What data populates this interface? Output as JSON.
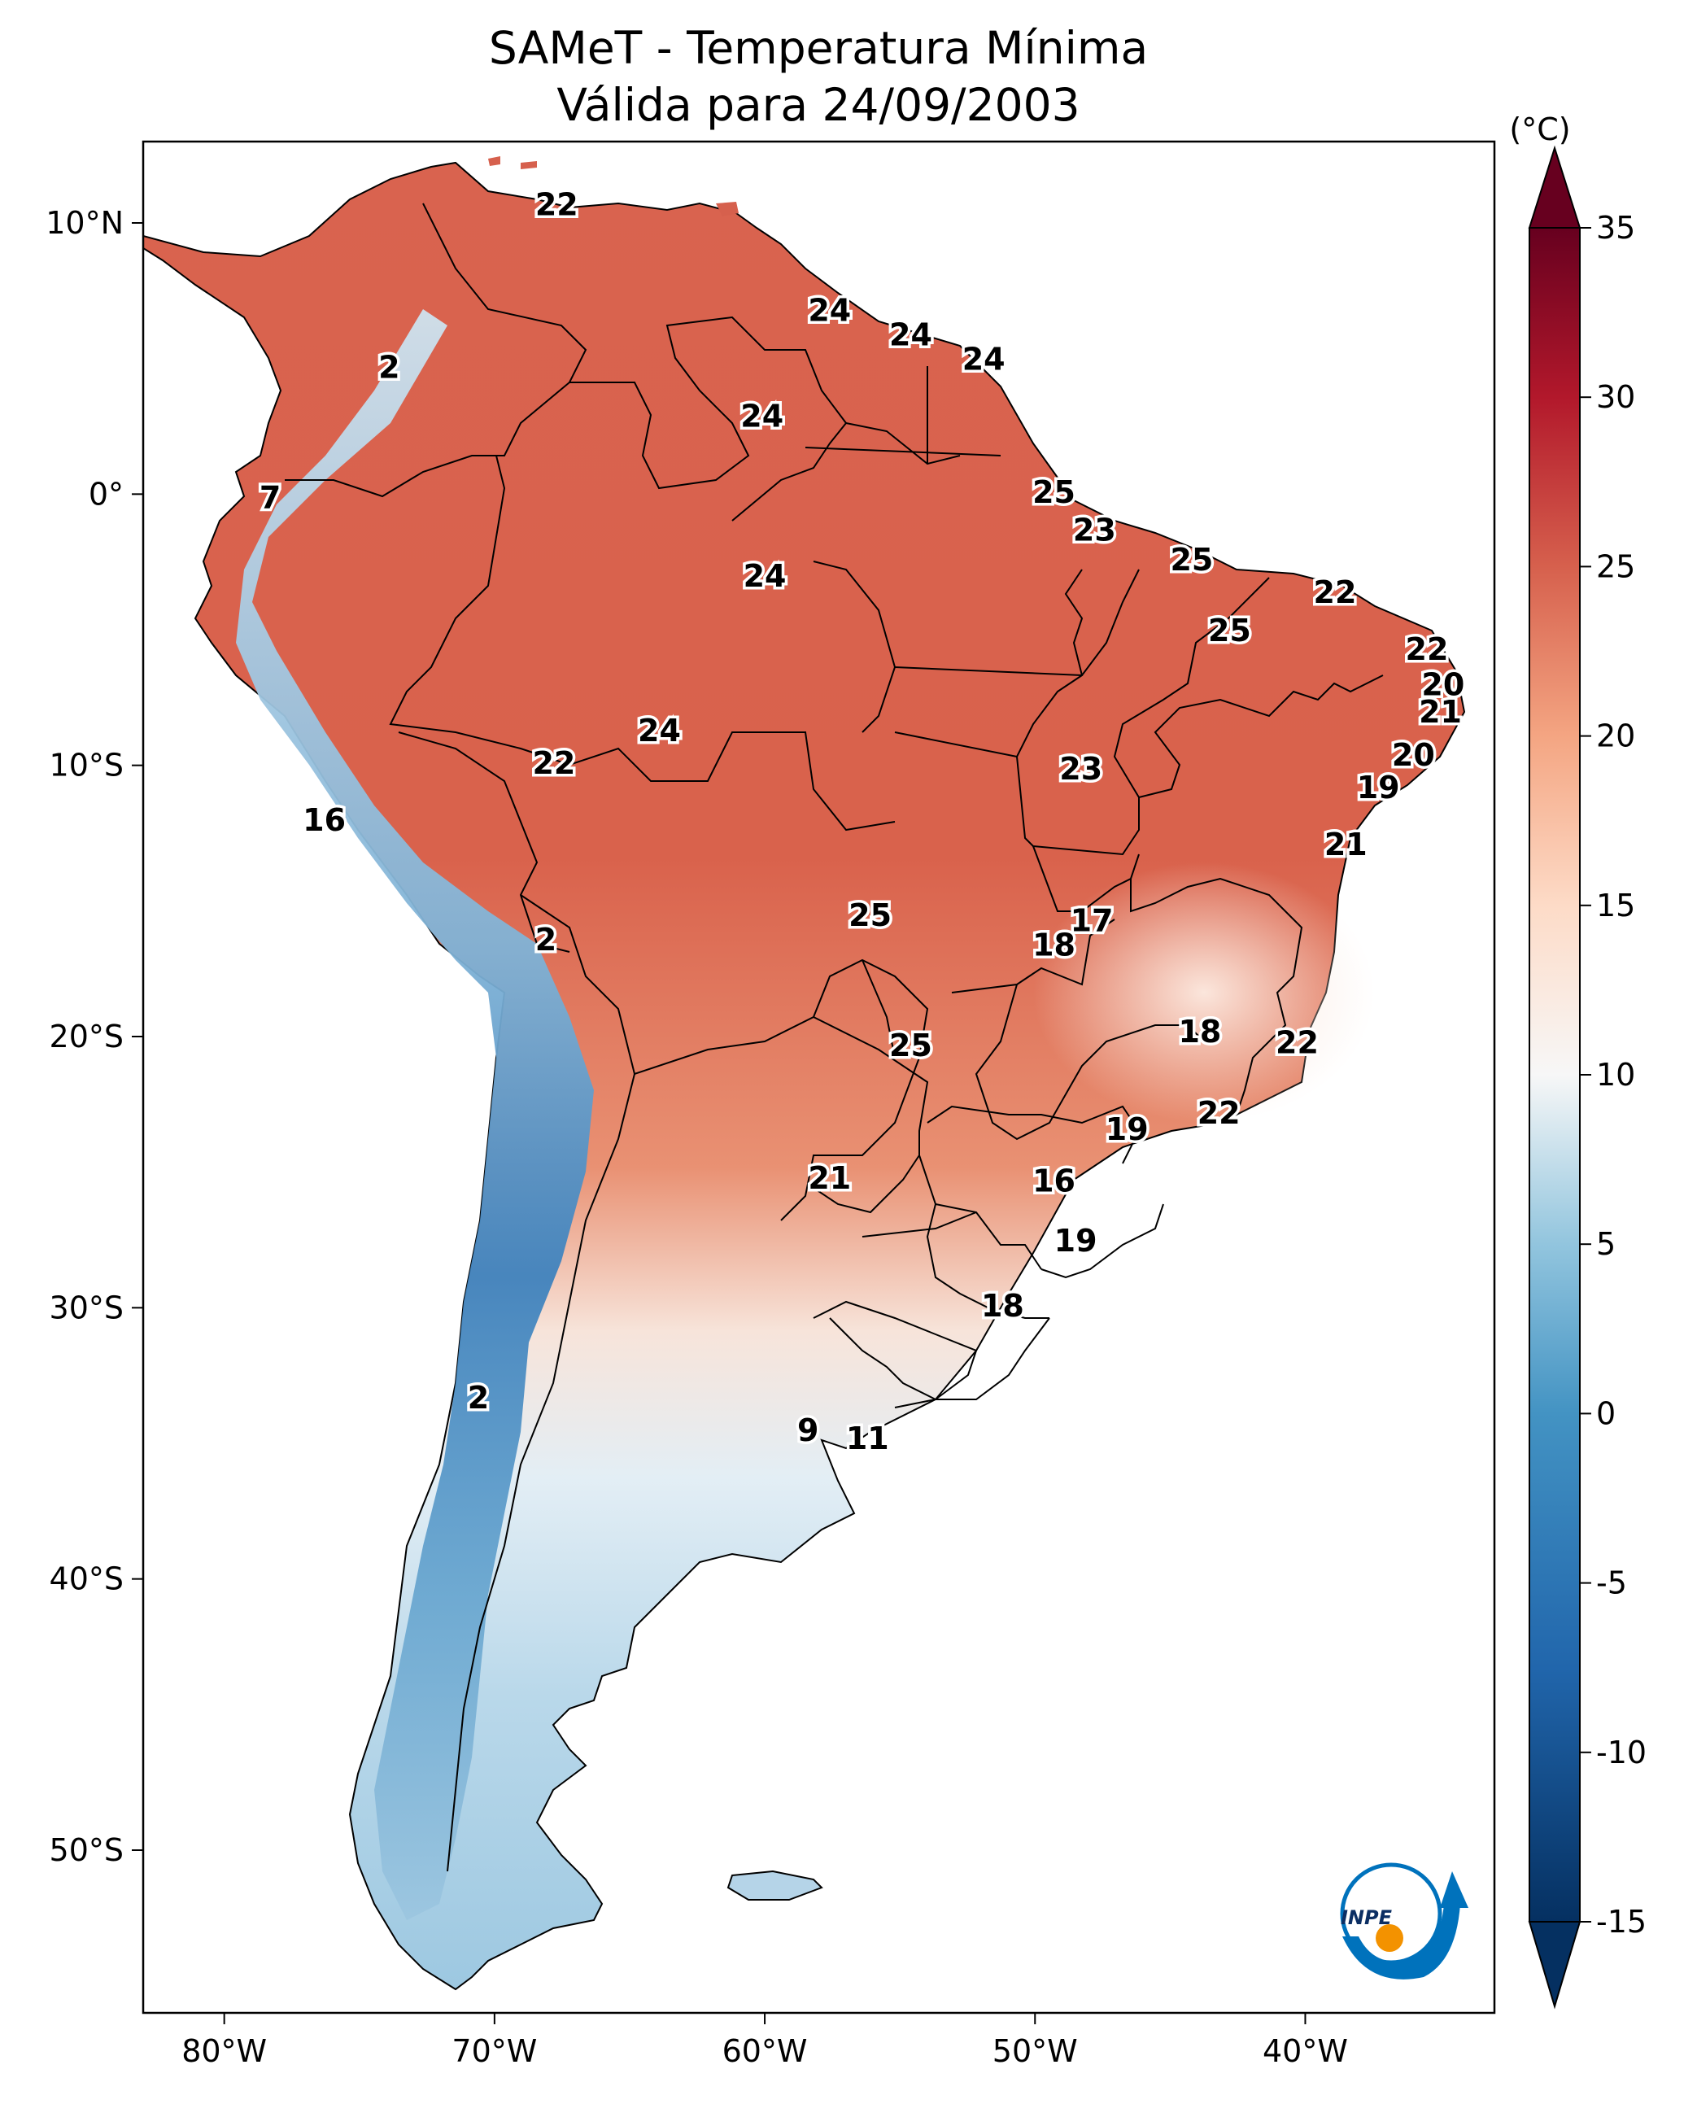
{
  "title": {
    "line1": "SAMeT - Temperatura Mínima",
    "line2": "Válida para 24/09/2003"
  },
  "map": {
    "lon_range": [
      -83,
      -33
    ],
    "lat_range": [
      -56,
      13
    ],
    "x_ticks": [
      {
        "value": -80,
        "label": "80°W"
      },
      {
        "value": -70,
        "label": "70°W"
      },
      {
        "value": -60,
        "label": "60°W"
      },
      {
        "value": -50,
        "label": "50°W"
      },
      {
        "value": -40,
        "label": "40°W"
      }
    ],
    "y_ticks": [
      {
        "value": 10,
        "label": "10°N"
      },
      {
        "value": 0,
        "label": "0°"
      },
      {
        "value": -10,
        "label": "10°S"
      },
      {
        "value": -20,
        "label": "20°S"
      },
      {
        "value": -30,
        "label": "30°S"
      },
      {
        "value": -40,
        "label": "40°S"
      },
      {
        "value": -50,
        "label": "50°S"
      }
    ],
    "city_labels": [
      {
        "text": "22",
        "lon": -67.7,
        "lat": 10.6
      },
      {
        "text": "2",
        "lon": -73.9,
        "lat": 4.6
      },
      {
        "text": "7",
        "lon": -78.3,
        "lat": -0.2
      },
      {
        "text": "24",
        "lon": -60.1,
        "lat": 2.8
      },
      {
        "text": "24",
        "lon": -57.6,
        "lat": 6.7
      },
      {
        "text": "24",
        "lon": -54.6,
        "lat": 5.8
      },
      {
        "text": "24",
        "lon": -51.9,
        "lat": 4.9
      },
      {
        "text": "25",
        "lon": -49.3,
        "lat": 0.0
      },
      {
        "text": "23",
        "lon": -47.8,
        "lat": -1.4
      },
      {
        "text": "25",
        "lon": -44.2,
        "lat": -2.5
      },
      {
        "text": "24",
        "lon": -60.0,
        "lat": -3.1
      },
      {
        "text": "22",
        "lon": -38.9,
        "lat": -3.7
      },
      {
        "text": "25",
        "lon": -42.8,
        "lat": -5.1
      },
      {
        "text": "22",
        "lon": -35.5,
        "lat": -5.8
      },
      {
        "text": "20",
        "lon": -34.9,
        "lat": -7.1
      },
      {
        "text": "21",
        "lon": -35.0,
        "lat": -8.1
      },
      {
        "text": "24",
        "lon": -63.9,
        "lat": -8.8
      },
      {
        "text": "22",
        "lon": -67.8,
        "lat": -10.0
      },
      {
        "text": "23",
        "lon": -48.3,
        "lat": -10.2
      },
      {
        "text": "20",
        "lon": -36.0,
        "lat": -9.7
      },
      {
        "text": "19",
        "lon": -37.3,
        "lat": -10.9
      },
      {
        "text": "16",
        "lon": -76.3,
        "lat": -12.1
      },
      {
        "text": "21",
        "lon": -38.5,
        "lat": -13.0
      },
      {
        "text": "25",
        "lon": -56.1,
        "lat": -15.6
      },
      {
        "text": "17",
        "lon": -47.9,
        "lat": -15.8
      },
      {
        "text": "18",
        "lon": -49.3,
        "lat": -16.7
      },
      {
        "text": "2",
        "lon": -68.1,
        "lat": -16.5
      },
      {
        "text": "18",
        "lon": -43.9,
        "lat": -19.9
      },
      {
        "text": "22",
        "lon": -40.3,
        "lat": -20.3
      },
      {
        "text": "25",
        "lon": -54.6,
        "lat": -20.4
      },
      {
        "text": "22",
        "lon": -43.2,
        "lat": -22.9
      },
      {
        "text": "19",
        "lon": -46.6,
        "lat": -23.5
      },
      {
        "text": "21",
        "lon": -57.6,
        "lat": -25.3
      },
      {
        "text": "16",
        "lon": -49.3,
        "lat": -25.4
      },
      {
        "text": "19",
        "lon": -48.5,
        "lat": -27.6
      },
      {
        "text": "18",
        "lon": -51.2,
        "lat": -30.0
      },
      {
        "text": "2",
        "lon": -70.6,
        "lat": -33.4
      },
      {
        "text": "9",
        "lon": -58.4,
        "lat": -34.6
      },
      {
        "text": "11",
        "lon": -56.2,
        "lat": -34.9
      }
    ]
  },
  "colorbar": {
    "unit": "(°C)",
    "min": -15,
    "max": 35,
    "ticks": [
      {
        "value": 35,
        "label": "35"
      },
      {
        "value": 30,
        "label": "30"
      },
      {
        "value": 25,
        "label": "25"
      },
      {
        "value": 20,
        "label": "20"
      },
      {
        "value": 15,
        "label": "15"
      },
      {
        "value": 10,
        "label": "10"
      },
      {
        "value": 5,
        "label": "5"
      },
      {
        "value": 0,
        "label": "0"
      },
      {
        "value": -5,
        "label": "-5"
      },
      {
        "value": -10,
        "label": "-10"
      },
      {
        "value": -15,
        "label": "-15"
      }
    ],
    "colors": {
      "hot": "#67001f",
      "warm": "#d6604d",
      "mild": "#f4a582",
      "neutral": "#f7f7f7",
      "cool": "#92c5de",
      "cold": "#2166ac",
      "coldest": "#053061"
    }
  },
  "logo": {
    "text": "INPE",
    "icon": "inpe-logo-icon",
    "accent": "#0072bc",
    "dot": "#f39200"
  }
}
